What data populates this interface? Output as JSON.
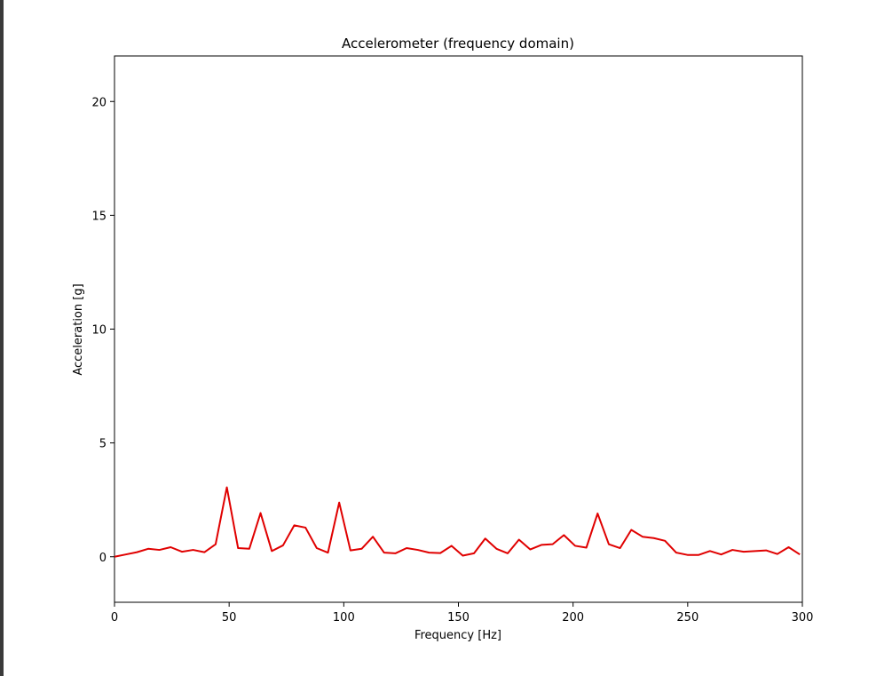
{
  "chart_data": {
    "type": "line",
    "title": "Accelerometer (frequency domain)",
    "xlabel": "Frequency [Hz]",
    "ylabel": "Acceleration [g]",
    "xlim": [
      0,
      300
    ],
    "ylim": [
      -2,
      22
    ],
    "xticks": [
      0,
      50,
      100,
      150,
      200,
      250,
      300
    ],
    "yticks": [
      0,
      5,
      10,
      15,
      20
    ],
    "grid": false,
    "series": [
      {
        "color": "#e00000",
        "x": [
          0,
          4.9,
          9.8,
          14.7,
          19.6,
          24.5,
          29.4,
          34.3,
          39.2,
          44.1,
          49,
          53.9,
          58.8,
          63.7,
          68.6,
          73.5,
          78.4,
          83.3,
          88.2,
          93.1,
          98,
          102.9,
          107.8,
          112.7,
          117.6,
          122.5,
          127.4,
          132.3,
          137.2,
          142.1,
          147,
          151.9,
          156.8,
          161.7,
          166.6,
          171.5,
          176.4,
          181.3,
          186.2,
          191.1,
          196,
          200.9,
          205.8,
          210.7,
          215.6,
          220.5,
          225.4,
          230.3,
          235.2,
          240.1,
          245,
          249.9,
          254.8,
          259.7,
          264.6,
          269.5,
          274.4,
          279.3,
          284.2,
          289.1,
          294,
          298.9
        ],
        "y": [
          0.0,
          0.1,
          0.2,
          0.35,
          0.3,
          0.42,
          0.22,
          0.3,
          0.2,
          0.55,
          3.05,
          0.38,
          0.35,
          1.92,
          0.25,
          0.5,
          1.38,
          1.28,
          0.38,
          0.18,
          2.38,
          0.28,
          0.35,
          0.88,
          0.18,
          0.15,
          0.38,
          0.3,
          0.18,
          0.16,
          0.48,
          0.05,
          0.15,
          0.8,
          0.35,
          0.15,
          0.75,
          0.32,
          0.52,
          0.55,
          0.95,
          0.48,
          0.4,
          1.9,
          0.55,
          0.38,
          1.18,
          0.88,
          0.82,
          0.7,
          0.18,
          0.08,
          0.08,
          0.25,
          0.1,
          0.3,
          0.22,
          0.25,
          0.28,
          0.12,
          0.42,
          0.1
        ]
      }
    ]
  }
}
